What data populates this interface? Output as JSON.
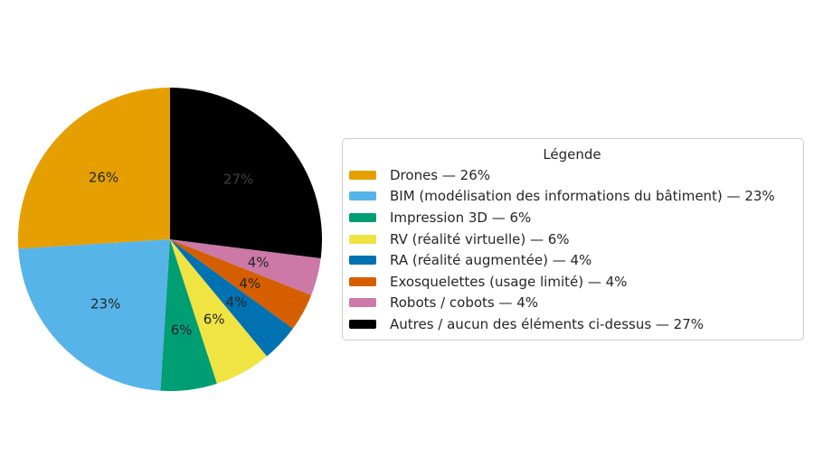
{
  "page": {
    "background": "#ffffff"
  },
  "chart_data": {
    "type": "pie",
    "title": "",
    "start_angle": 90,
    "direction": "counterclockwise",
    "pct_distance": 0.6,
    "default_pct_label_color": "#262626",
    "legend": {
      "title": "Légende",
      "position": "center right",
      "border_color": "#cccccc",
      "background": "#ffffff",
      "text_color": "#262626"
    },
    "slices": [
      {
        "name": "Drones",
        "value": 26,
        "color": "#E69F00",
        "pct_label": "26%",
        "legend_label": "Drones — 26%"
      },
      {
        "name": "BIM (modélisation des informations du bâtiment)",
        "value": 23,
        "color": "#56B4E9",
        "pct_label": "23%",
        "legend_label": "BIM (modélisation des informations du bâtiment) — 23%"
      },
      {
        "name": "Impression 3D",
        "value": 6,
        "color": "#009E73",
        "pct_label": "6%",
        "legend_label": "Impression 3D — 6%"
      },
      {
        "name": "RV (réalité virtuelle)",
        "value": 6,
        "color": "#F0E442",
        "pct_label": "6%",
        "legend_label": "RV (réalité virtuelle) — 6%"
      },
      {
        "name": "RA (réalité augmentée)",
        "value": 4,
        "color": "#0072B2",
        "pct_label": "4%",
        "legend_label": "RA (réalité augmentée) — 4%"
      },
      {
        "name": "Exosquelettes (usage limité)",
        "value": 4,
        "color": "#D55E00",
        "pct_label": "4%",
        "legend_label": "Exosquelettes (usage limité) — 4%"
      },
      {
        "name": "Robots / cobots",
        "value": 4,
        "color": "#CC79A7",
        "pct_label": "4%",
        "legend_label": "Robots / cobots — 4%"
      },
      {
        "name": "Autres / aucun des éléments ci-dessus",
        "value": 27,
        "color": "#000000",
        "pct_label": "27%",
        "pct_label_color": "#3f3f3f",
        "legend_label": "Autres / aucun des éléments ci-dessus — 27%"
      }
    ]
  }
}
